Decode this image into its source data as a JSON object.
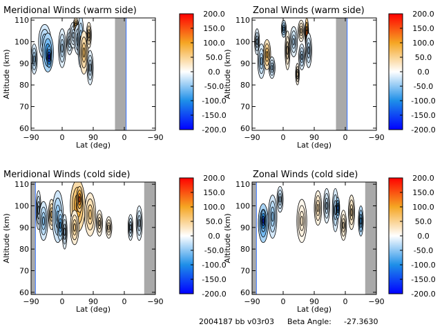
{
  "footer": {
    "run_id": "2004187 bb v03r03",
    "beta_label": "Beta Angle:",
    "beta_value": "-27.3630"
  },
  "colorbar": {
    "ticks": [
      "200.0",
      "150.0",
      "100.0",
      "50.0",
      "0.0",
      "-50.0",
      "-100.0",
      "-150.0",
      "-200.0"
    ],
    "range": [
      -200,
      200
    ],
    "colors": {
      "min": "#0000ff",
      "low": "#1e8fe8",
      "mid": "#ffffff",
      "high": "#f5a623",
      "max": "#ff0000"
    }
  },
  "colors": {
    "data_gap": "#a9a9a9",
    "contour_line": "#000000",
    "edge_line": "#3070ff"
  },
  "chart_data": [
    {
      "type": "heatmap",
      "title": "Meridional Winds (warm side)",
      "xlabel": "Lat (deg)",
      "ylabel": "Altitude (km)",
      "xticks": [
        "−90",
        "0",
        "90",
        "0",
        "−90"
      ],
      "yticks": [
        "60",
        "70",
        "80",
        "90",
        "100",
        "110"
      ],
      "ylim": [
        59,
        111
      ],
      "gaps": [
        [
          1.35,
          1.53
        ]
      ],
      "cells": [
        {
          "u": 0.05,
          "y": 92,
          "rx": 0.05,
          "ry": 7,
          "v": -50
        },
        {
          "u": 0.22,
          "y": 100,
          "rx": 0.1,
          "ry": 8,
          "v": -55
        },
        {
          "u": 0.27,
          "y": 95,
          "rx": 0.09,
          "ry": 9,
          "v": -110
        },
        {
          "u": 0.29,
          "y": 93,
          "rx": 0.04,
          "ry": 5,
          "v": -190
        },
        {
          "u": 0.5,
          "y": 97,
          "rx": 0.06,
          "ry": 9,
          "v": -40
        },
        {
          "u": 0.62,
          "y": 100,
          "rx": 0.05,
          "ry": 6,
          "v": -35
        },
        {
          "u": 0.68,
          "y": 103,
          "rx": 0.06,
          "ry": 6,
          "v": -30
        },
        {
          "u": 0.72,
          "y": 108,
          "rx": 0.04,
          "ry": 3,
          "v": 75
        },
        {
          "u": 0.76,
          "y": 101,
          "rx": 0.07,
          "ry": 7,
          "v": -45
        },
        {
          "u": 0.8,
          "y": 100,
          "rx": 0.05,
          "ry": 12,
          "v": -60
        },
        {
          "u": 0.85,
          "y": 95,
          "rx": 0.07,
          "ry": 10,
          "v": 70
        },
        {
          "u": 0.93,
          "y": 103,
          "rx": 0.04,
          "ry": 6,
          "v": 55
        },
        {
          "u": 0.95,
          "y": 88,
          "rx": 0.05,
          "ry": 8,
          "v": -35
        }
      ]
    },
    {
      "type": "heatmap",
      "title": "Zonal Winds (warm side)",
      "xlabel": "Lat (deg)",
      "ylabel": "Altitude (km)",
      "xticks": [
        "−90",
        "0",
        "90",
        "0",
        "−90"
      ],
      "yticks": [
        "60",
        "70",
        "80",
        "90",
        "100",
        "110"
      ],
      "ylim": [
        59,
        111
      ],
      "gaps": [
        [
          1.35,
          1.53
        ]
      ],
      "cells": [
        {
          "u": 0.08,
          "y": 100,
          "rx": 0.04,
          "ry": 6,
          "v": -40
        },
        {
          "u": 0.15,
          "y": 91,
          "rx": 0.06,
          "ry": 8,
          "v": -45
        },
        {
          "u": 0.24,
          "y": 94,
          "rx": 0.06,
          "ry": 7,
          "v": 85
        },
        {
          "u": 0.32,
          "y": 88,
          "rx": 0.05,
          "ry": 5,
          "v": -40
        },
        {
          "u": 0.51,
          "y": 106,
          "rx": 0.04,
          "ry": 4,
          "v": -70
        },
        {
          "u": 0.57,
          "y": 96,
          "rx": 0.04,
          "ry": 9,
          "v": 40
        },
        {
          "u": 0.67,
          "y": 100,
          "rx": 0.06,
          "ry": 7,
          "v": -35
        },
        {
          "u": 0.79,
          "y": 105,
          "rx": 0.05,
          "ry": 5,
          "v": 40
        },
        {
          "u": 0.8,
          "y": 93,
          "rx": 0.05,
          "ry": 6,
          "v": -45
        },
        {
          "u": 0.88,
          "y": 104,
          "rx": 0.03,
          "ry": 7,
          "v": 140
        },
        {
          "u": 0.91,
          "y": 96,
          "rx": 0.05,
          "ry": 8,
          "v": -40
        },
        {
          "u": 0.73,
          "y": 85,
          "rx": 0.03,
          "ry": 5,
          "v": 35
        }
      ]
    },
    {
      "type": "heatmap",
      "title": "Meridional Winds (cold side)",
      "xlabel": "Lat (deg)",
      "ylabel": "Altitude (km)",
      "xticks": [
        "−90",
        "0",
        "90",
        "0",
        "−90"
      ],
      "yticks": [
        "60",
        "70",
        "80",
        "90",
        "100",
        "110"
      ],
      "ylim": [
        59,
        111
      ],
      "gaps": [
        [
          0.0,
          0.07
        ],
        [
          1.82,
          2.0
        ]
      ],
      "cells": [
        {
          "u": 0.12,
          "y": 98,
          "rx": 0.04,
          "ry": 9,
          "v": -35
        },
        {
          "u": 0.2,
          "y": 93,
          "rx": 0.07,
          "ry": 9,
          "v": -55
        },
        {
          "u": 0.33,
          "y": 96,
          "rx": 0.05,
          "ry": 7,
          "v": 60
        },
        {
          "u": 0.43,
          "y": 95,
          "rx": 0.09,
          "ry": 12,
          "v": -60
        },
        {
          "u": 0.47,
          "y": 91,
          "rx": 0.05,
          "ry": 7,
          "v": -90
        },
        {
          "u": 0.54,
          "y": 88,
          "rx": 0.04,
          "ry": 8,
          "v": -35
        },
        {
          "u": 0.75,
          "y": 100,
          "rx": 0.12,
          "ry": 12,
          "v": 110
        },
        {
          "u": 0.78,
          "y": 103,
          "rx": 0.05,
          "ry": 6,
          "v": 150
        },
        {
          "u": 0.7,
          "y": 90,
          "rx": 0.07,
          "ry": 8,
          "v": 55
        },
        {
          "u": 0.95,
          "y": 96,
          "rx": 0.09,
          "ry": 10,
          "v": 60
        },
        {
          "u": 1.1,
          "y": 92,
          "rx": 0.05,
          "ry": 6,
          "v": 40
        },
        {
          "u": 1.25,
          "y": 90,
          "rx": 0.05,
          "ry": 5,
          "v": 35
        },
        {
          "u": 1.6,
          "y": 90,
          "rx": 0.04,
          "ry": 6,
          "v": -40
        },
        {
          "u": 1.74,
          "y": 92,
          "rx": 0.05,
          "ry": 8,
          "v": -35
        }
      ]
    },
    {
      "type": "heatmap",
      "title": "Zonal Winds (cold side)",
      "xlabel": "Lat (deg)",
      "ylabel": "Altitude (km)",
      "xticks": [
        "−90",
        "0",
        "90",
        "0",
        "−90"
      ],
      "yticks": [
        "60",
        "70",
        "80",
        "90",
        "100",
        "110"
      ],
      "ylim": [
        59,
        111
      ],
      "gaps": [
        [
          0.0,
          0.07
        ],
        [
          1.82,
          2.0
        ]
      ],
      "cells": [
        {
          "u": 0.18,
          "y": 92,
          "rx": 0.08,
          "ry": 9,
          "v": -110
        },
        {
          "u": 0.18,
          "y": 93,
          "rx": 0.04,
          "ry": 5,
          "v": -170
        },
        {
          "u": 0.33,
          "y": 95,
          "rx": 0.07,
          "ry": 10,
          "v": -55
        },
        {
          "u": 0.45,
          "y": 103,
          "rx": 0.05,
          "ry": 6,
          "v": -40
        },
        {
          "u": 0.8,
          "y": 93,
          "rx": 0.08,
          "ry": 10,
          "v": 25
        },
        {
          "u": 1.06,
          "y": 99,
          "rx": 0.06,
          "ry": 8,
          "v": 40
        },
        {
          "u": 1.2,
          "y": 100,
          "rx": 0.05,
          "ry": 8,
          "v": -35
        },
        {
          "u": 1.34,
          "y": 98,
          "rx": 0.05,
          "ry": 10,
          "v": -50
        },
        {
          "u": 1.38,
          "y": 99,
          "rx": 0.03,
          "ry": 5,
          "v": -120
        },
        {
          "u": 1.47,
          "y": 91,
          "rx": 0.05,
          "ry": 7,
          "v": 35
        },
        {
          "u": 1.6,
          "y": 97,
          "rx": 0.05,
          "ry": 8,
          "v": 45
        },
        {
          "u": 1.75,
          "y": 93,
          "rx": 0.04,
          "ry": 7,
          "v": -90
        }
      ]
    }
  ]
}
